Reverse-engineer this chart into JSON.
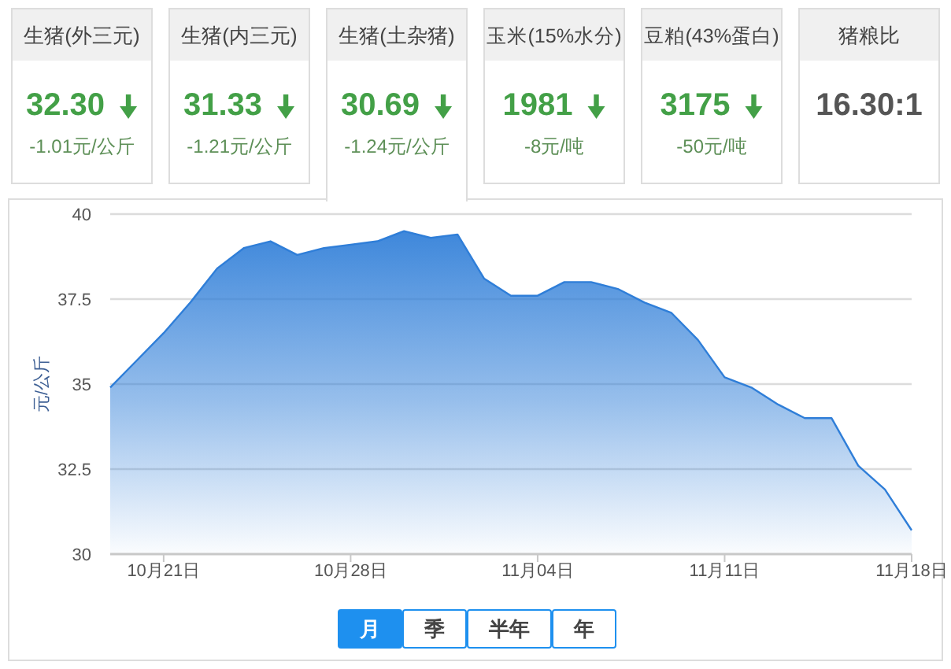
{
  "chart_data": [
    {
      "type": "other",
      "title": "生猪(外三元)",
      "annotations": [
        "32.30",
        "-1.01元/公斤"
      ]
    },
    {
      "type": "other",
      "title": "生猪(内三元)",
      "annotations": [
        "31.33",
        "-1.21元/公斤"
      ]
    },
    {
      "type": "other",
      "title": "生猪(土杂猪)",
      "annotations": [
        "30.69",
        "-1.24元/公斤"
      ]
    },
    {
      "type": "other",
      "title": "玉米(15%水分)",
      "annotations": [
        "1981",
        "-8元/吨"
      ]
    },
    {
      "type": "other",
      "title": "豆粕(43%蛋白)",
      "annotations": [
        "3175",
        "-50元/吨"
      ]
    },
    {
      "type": "other",
      "title": "猪粮比",
      "annotations": [
        "16.30:1"
      ]
    },
    {
      "type": "area",
      "ylabel": "元/公斤",
      "x": [
        "--10-19",
        "--10-20",
        "--10-21",
        "--10-22",
        "--10-23",
        "--10-24",
        "--10-25",
        "--10-26",
        "--10-27",
        "--10-28",
        "--10-29",
        "--10-30",
        "--10-31",
        "--11-01",
        "--11-02",
        "--11-03",
        "--11-04",
        "--11-05",
        "--11-06",
        "--11-07",
        "--11-08",
        "--11-09",
        "--11-10",
        "--11-11",
        "--11-12",
        "--11-13",
        "--11-14",
        "--11-15",
        "--11-16",
        "--11-17",
        "--11-18"
      ],
      "series": [
        {
          "color": "#2f7ed8",
          "values": [
            34.9,
            35.7,
            36.5,
            37.4,
            38.4,
            39.0,
            39.2,
            38.8,
            39.0,
            39.1,
            39.2,
            39.5,
            39.3,
            39.4,
            38.1,
            37.6,
            37.6,
            38.0,
            38.0,
            37.8,
            37.4,
            37.1,
            36.3,
            35.2,
            34.9,
            34.4,
            34.0,
            34.0,
            32.6,
            31.9,
            30.7
          ]
        }
      ],
      "xlim": [
        "--10-19",
        "--11-18"
      ],
      "ylim": [
        30,
        40
      ],
      "xticks": [
        {
          "value": "--10-21",
          "label": "10月21日"
        },
        {
          "value": "--10-28",
          "label": "10月28日"
        },
        {
          "value": "--11-04",
          "label": "11月04日"
        },
        {
          "value": "--11-11",
          "label": "11月11日"
        },
        {
          "value": "--11-18",
          "label": "11月18日"
        }
      ],
      "yticks": [
        30,
        32.5,
        35,
        37.5,
        40
      ],
      "grid": "y"
    },
    {
      "type": "other",
      "annotations": [
        "月",
        "季",
        "半年",
        "年"
      ]
    }
  ]
}
